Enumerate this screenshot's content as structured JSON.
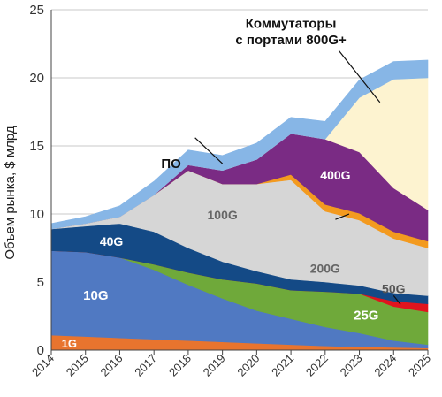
{
  "chart_data": {
    "type": "area",
    "stacked": true,
    "ylabel": "Объем рынка, $ млрд",
    "xlabel": "",
    "ylim": [
      0,
      25
    ],
    "yticks": [
      0,
      5,
      10,
      15,
      20,
      25
    ],
    "x": [
      2014,
      2015,
      2016,
      2017,
      2018,
      2019,
      2020,
      2021,
      2022,
      2023,
      2024,
      2025
    ],
    "xtick_labels": [
      "2014",
      "2015",
      "2016",
      "2017",
      "2018",
      "2019",
      "2020",
      "2021",
      "2022",
      "2023",
      "2024",
      "2025"
    ],
    "grid": "horizontal",
    "series": [
      {
        "name": "1G",
        "color": "#e8742e",
        "values": [
          1.1,
          1.0,
          0.9,
          0.8,
          0.7,
          0.6,
          0.5,
          0.4,
          0.3,
          0.25,
          0.2,
          0.15
        ]
      },
      {
        "name": "10G",
        "color": "#5079c2",
        "values": [
          6.2,
          6.2,
          5.9,
          5.1,
          4.1,
          3.2,
          2.4,
          1.9,
          1.4,
          1.0,
          0.5,
          0.25
        ]
      },
      {
        "name": "25G",
        "color": "#6fa93a",
        "values": [
          0,
          0,
          0,
          0.4,
          0.9,
          1.4,
          2.0,
          2.1,
          2.6,
          2.9,
          2.5,
          2.4
        ]
      },
      {
        "name": "50G",
        "color": "#e0141e",
        "values": [
          0,
          0,
          0,
          0,
          0,
          0,
          0,
          0,
          0,
          0,
          0.4,
          0.6
        ]
      },
      {
        "name": "40G",
        "color": "#144a86",
        "values": [
          1.6,
          1.9,
          2.5,
          2.4,
          1.8,
          1.3,
          0.9,
          0.8,
          0.7,
          0.6,
          0.6,
          0.6
        ]
      },
      {
        "name": "100G",
        "color": "#d6d6d6",
        "values": [
          0,
          0.2,
          0.5,
          2.7,
          5.7,
          5.7,
          6.4,
          7.3,
          5.2,
          4.8,
          4.0,
          3.5
        ]
      },
      {
        "name": "200G",
        "color": "#f39a1f",
        "values": [
          0,
          0,
          0,
          0,
          0,
          0,
          0,
          0.4,
          0.5,
          0.5,
          0.5,
          0.5
        ]
      },
      {
        "name": "400G",
        "color": "#7a2b84",
        "values": [
          0,
          0,
          0,
          0,
          0.4,
          1.0,
          1.8,
          3.0,
          4.8,
          4.5,
          3.2,
          2.3
        ]
      },
      {
        "name": "Коммутаторы с портами 800G+",
        "color": "#fdf3d0",
        "values": [
          0,
          0,
          0,
          0,
          0,
          0,
          0,
          0,
          0,
          4.0,
          8.0,
          9.7
        ]
      },
      {
        "name": "ПО",
        "color": "#87b6e6",
        "values": [
          0.4,
          0.5,
          0.8,
          1.0,
          1.1,
          1.1,
          1.2,
          1.2,
          1.3,
          1.3,
          1.3,
          1.3
        ]
      }
    ],
    "annotations": [
      {
        "text": "Коммутаторы",
        "series": "Коммутаторы с портами 800G+"
      },
      {
        "text": "с портами 800G+",
        "series": "Коммутаторы с портами 800G+"
      },
      {
        "text": "ПО",
        "series": "ПО"
      },
      {
        "text": "400G",
        "series": "400G"
      },
      {
        "text": "200G",
        "series": "200G"
      },
      {
        "text": "100G",
        "series": "100G"
      },
      {
        "text": "40G",
        "series": "40G"
      },
      {
        "text": "50G",
        "series": "50G"
      },
      {
        "text": "25G",
        "series": "25G"
      },
      {
        "text": "10G",
        "series": "10G"
      },
      {
        "text": "1G",
        "series": "1G"
      }
    ]
  }
}
